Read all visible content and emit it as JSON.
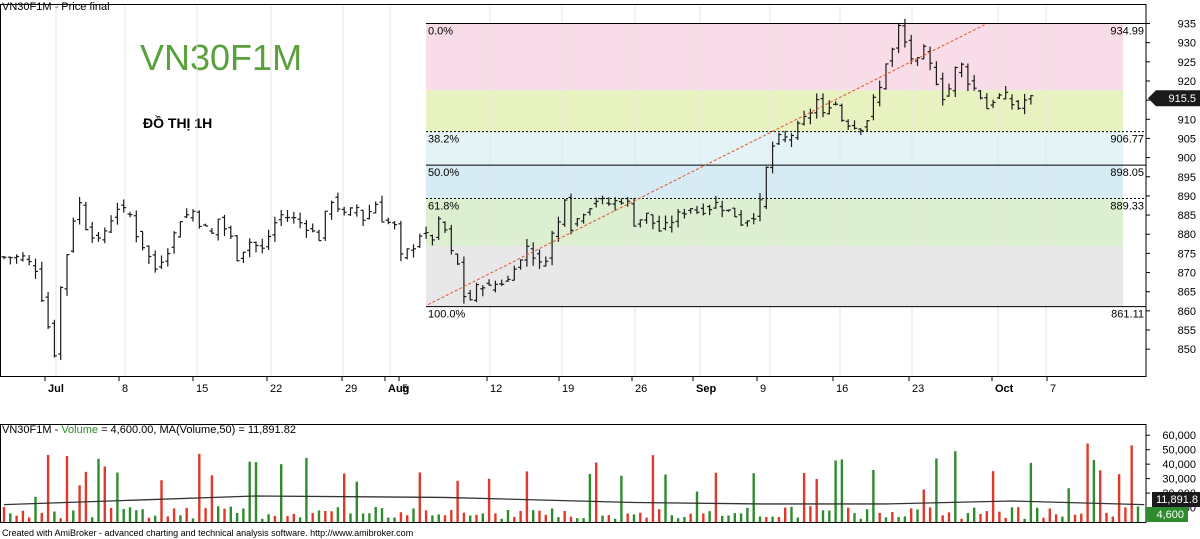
{
  "header": {
    "price_title": "VN30F1M - Price final",
    "symbol": "VN30F1M",
    "subtitle": "ĐỒ THỊ 1H"
  },
  "volume_header": {
    "name": "VN30F1M",
    "sep": " - ",
    "label": "Volume",
    "rest": " = 4,600.00, MA(Volume,50) = 11,891.82"
  },
  "footer": "Created with AmiBroker - advanced charting and technical analysis software. http://www.amibroker.com",
  "colors": {
    "up": "#2e8b2e",
    "down": "#e0392b",
    "candle": "#1a1a1a",
    "fib_0_382": "#f8dde8",
    "fib_382_halfway": "#e8f1c0",
    "fib_382": "#e4f3f5",
    "fib_50": "#d6ebf3",
    "fib_618": "#dcefd0",
    "fib_100": "#e8e8e8",
    "trend": "#e05530"
  },
  "chart_data": [
    {
      "type": "candlestick",
      "title": "VN30F1M - Price final",
      "ylim": [
        843,
        938
      ],
      "y_ticks": [
        850,
        855,
        860,
        865,
        870,
        875,
        880,
        885,
        890,
        895,
        900,
        905,
        910,
        915,
        920,
        925,
        930,
        935
      ],
      "last_price": "915.5",
      "x_ticks": [
        "Jul",
        "8",
        "15",
        "22",
        "29",
        "Aug",
        "5",
        "12",
        "19",
        "26",
        "Sep",
        "9",
        "16",
        "23",
        "Oct",
        "7"
      ],
      "fibonacci": {
        "high": 934.99,
        "low": 861.11,
        "levels": [
          {
            "pct": "0.0%",
            "value": "934.99"
          },
          {
            "pct": "38.2%",
            "value": "906.77"
          },
          {
            "pct": "50.0%",
            "value": "898.05"
          },
          {
            "pct": "61.8%",
            "value": "889.33"
          },
          {
            "pct": "100.0%",
            "value": "861.11"
          }
        ]
      },
      "close_path": [
        [
          0,
          874
        ],
        [
          3,
          874
        ],
        [
          5,
          871
        ],
        [
          7,
          856
        ],
        [
          8,
          849
        ],
        [
          9,
          866
        ],
        [
          11,
          884
        ],
        [
          12,
          888
        ],
        [
          13,
          882
        ],
        [
          15,
          878
        ],
        [
          17,
          884
        ],
        [
          18,
          887
        ],
        [
          20,
          885
        ],
        [
          21,
          880
        ],
        [
          23,
          874
        ],
        [
          24,
          871
        ],
        [
          26,
          876
        ],
        [
          28,
          884
        ],
        [
          30,
          886
        ],
        [
          31,
          883
        ],
        [
          33,
          880
        ],
        [
          34,
          884
        ],
        [
          36,
          879
        ],
        [
          37,
          874
        ],
        [
          39,
          878
        ],
        [
          41,
          876
        ],
        [
          43,
          883
        ],
        [
          44,
          885
        ],
        [
          46,
          884
        ],
        [
          48,
          882
        ],
        [
          50,
          879
        ],
        [
          51,
          885
        ],
        [
          52,
          889
        ],
        [
          54,
          885
        ],
        [
          56,
          887
        ],
        [
          57,
          884
        ],
        [
          59,
          888
        ],
        [
          60,
          884
        ],
        [
          62,
          882
        ],
        [
          63,
          874
        ],
        [
          65,
          877
        ],
        [
          66,
          880
        ],
        [
          68,
          879
        ],
        [
          69,
          883
        ],
        [
          70,
          881
        ],
        [
          71,
          875
        ],
        [
          72,
          872
        ],
        [
          73,
          864
        ],
        [
          74,
          863
        ],
        [
          75,
          866
        ],
        [
          76,
          867
        ],
        [
          77,
          866
        ],
        [
          78,
          867
        ],
        [
          80,
          868
        ],
        [
          81,
          872
        ],
        [
          82,
          873
        ],
        [
          83,
          877
        ],
        [
          85,
          872
        ],
        [
          86,
          874
        ],
        [
          87,
          880
        ],
        [
          88,
          883
        ],
        [
          89,
          890
        ],
        [
          90,
          882
        ],
        [
          92,
          886
        ],
        [
          94,
          889
        ],
        [
          96,
          888
        ],
        [
          98,
          889
        ],
        [
          99,
          888
        ],
        [
          100,
          883
        ],
        [
          101,
          884
        ],
        [
          102,
          885
        ],
        [
          103,
          883
        ],
        [
          104,
          881
        ],
        [
          105,
          882
        ],
        [
          107,
          885
        ],
        [
          109,
          887
        ],
        [
          110,
          886
        ],
        [
          112,
          887
        ],
        [
          113,
          888
        ],
        [
          114,
          887
        ],
        [
          116,
          885
        ],
        [
          117,
          883
        ],
        [
          118,
          884
        ],
        [
          119,
          885
        ],
        [
          120,
          888
        ],
        [
          121,
          897
        ],
        [
          122,
          903
        ],
        [
          123,
          905
        ],
        [
          124,
          905
        ],
        [
          125,
          906
        ],
        [
          126,
          908
        ],
        [
          127,
          910
        ],
        [
          128,
          912
        ],
        [
          129,
          915
        ],
        [
          130,
          911
        ],
        [
          131,
          914
        ],
        [
          132,
          914
        ],
        [
          133,
          910
        ],
        [
          134,
          909
        ],
        [
          135,
          908
        ],
        [
          136,
          908
        ],
        [
          137,
          910
        ],
        [
          138,
          915
        ],
        [
          139,
          918
        ],
        [
          140,
          925
        ],
        [
          141,
          928
        ],
        [
          142,
          934
        ],
        [
          143,
          930
        ],
        [
          144,
          926
        ],
        [
          145,
          925
        ],
        [
          146,
          928
        ],
        [
          147,
          924
        ],
        [
          148,
          920
        ],
        [
          149,
          916
        ],
        [
          150,
          918
        ],
        [
          151,
          923
        ],
        [
          152,
          924
        ],
        [
          153,
          920
        ],
        [
          154,
          918
        ],
        [
          155,
          916
        ],
        [
          156,
          913
        ],
        [
          157,
          915
        ],
        [
          158,
          916
        ],
        [
          159,
          916
        ],
        [
          160,
          914
        ],
        [
          161,
          913
        ],
        [
          162,
          915
        ],
        [
          163,
          915.5
        ]
      ]
    },
    {
      "type": "bar",
      "title": "Volume",
      "ylim": [
        0,
        65000
      ],
      "y_ticks": [
        "60,000",
        "50,000",
        "40,000",
        "30,000",
        "20,000",
        "10,000"
      ],
      "last_volume": "4,600",
      "ma_label": "11,891.8",
      "ma_path": [
        [
          0,
          12000
        ],
        [
          20,
          15000
        ],
        [
          40,
          18000
        ],
        [
          70,
          17000
        ],
        [
          100,
          13500
        ],
        [
          120,
          12500
        ],
        [
          140,
          12500
        ],
        [
          160,
          14500
        ],
        [
          181,
          12000
        ]
      ]
    }
  ]
}
